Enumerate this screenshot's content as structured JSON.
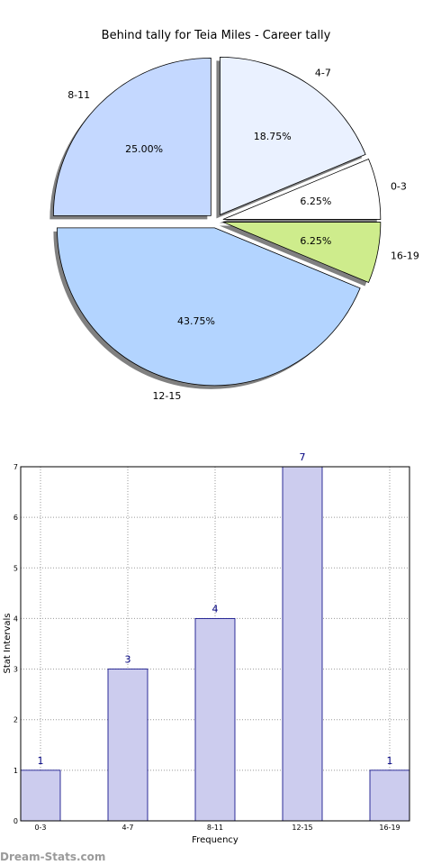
{
  "watermark": "Dream-Stats.com",
  "chart_data": [
    {
      "type": "pie",
      "title": "Behind tally for Teia Miles - Career tally",
      "slices": [
        {
          "label": "0-3",
          "value": 6.25,
          "pct_label": "6.25%",
          "color": "#ffffff"
        },
        {
          "label": "4-7",
          "value": 18.75,
          "pct_label": "18.75%",
          "color": "#eaf1ff"
        },
        {
          "label": "8-11",
          "value": 25.0,
          "pct_label": "25.00%",
          "color": "#c4d8ff"
        },
        {
          "label": "12-15",
          "value": 43.75,
          "pct_label": "43.75%",
          "color": "#b3d4ff"
        },
        {
          "label": "16-19",
          "value": 6.25,
          "pct_label": "6.25%",
          "color": "#ceec8c"
        }
      ],
      "start_angle_deg": 0,
      "exploded": true,
      "shadow": true
    },
    {
      "type": "bar",
      "categories": [
        "0-3",
        "4-7",
        "8-11",
        "12-15",
        "16-19"
      ],
      "values": [
        1,
        3,
        4,
        7,
        1
      ],
      "value_labels": [
        "1",
        "3",
        "4",
        "7",
        "1"
      ],
      "xlabel": "Frequency",
      "ylabel": "Stat Intervals",
      "ylim": [
        0,
        7
      ],
      "yticks": [
        "0",
        "1",
        "2",
        "3",
        "4",
        "5",
        "6",
        "7"
      ],
      "grid": true,
      "bar_color": "#ccccee",
      "bar_edge": "#000080"
    }
  ]
}
